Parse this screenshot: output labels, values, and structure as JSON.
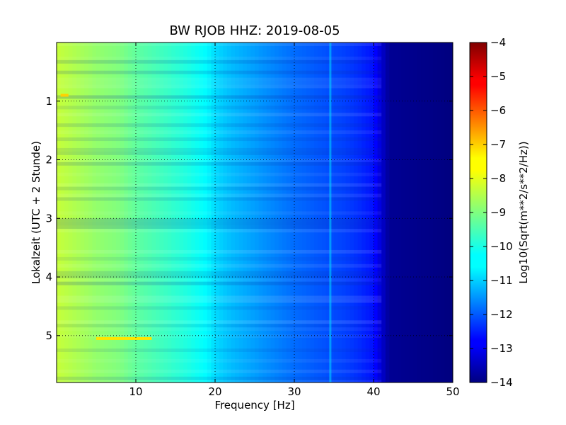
{
  "chart_data": {
    "type": "heatmap",
    "title": "BW RJOB HHZ: 2019-08-05",
    "xlabel": "Frequency [Hz]",
    "ylabel": "Lokalzeit (UTC + 2 Stunde)",
    "xlim": [
      0,
      50
    ],
    "ylim": [
      0,
      5.8
    ],
    "y_inverted": true,
    "x_ticks": [
      10,
      20,
      30,
      40,
      50
    ],
    "x_tick_labels": [
      "10",
      "20",
      "30",
      "40",
      "50"
    ],
    "y_ticks": [
      1,
      2,
      3,
      4,
      5
    ],
    "y_tick_labels": [
      "1",
      "2",
      "3",
      "4",
      "5"
    ],
    "grid": true,
    "colorbar": {
      "label": "Log10(Sqrt(m**2/s**2/Hz))",
      "range": [
        -14,
        -4
      ],
      "ticks": [
        -4,
        -5,
        -6,
        -7,
        -8,
        -9,
        -10,
        -11,
        -12,
        -13,
        -14
      ],
      "tick_labels": [
        "−4",
        "−5",
        "−6",
        "−7",
        "−8",
        "−9",
        "−10",
        "−11",
        "−12",
        "−13",
        "−14"
      ],
      "colormap": "jet"
    },
    "profile": {
      "frequency_hz": [
        0,
        2,
        5,
        8,
        10,
        13,
        16,
        19,
        20,
        22,
        25,
        28,
        30,
        33,
        36,
        38,
        40,
        41,
        42,
        50
      ],
      "log10_amplitude": [
        -8.3,
        -8.5,
        -8.8,
        -9.0,
        -9.3,
        -9.6,
        -9.9,
        -10.3,
        -10.6,
        -10.9,
        -11.2,
        -11.5,
        -11.7,
        -11.9,
        -12.1,
        -12.3,
        -12.6,
        -13.2,
        -13.8,
        -14.0
      ]
    },
    "features": [
      {
        "label": "34.5 Hz line",
        "frequency_hz": 34.5,
        "log10_amplitude": -10.6
      },
      {
        "label": "strong band",
        "time": 5.05,
        "freq_range": [
          5,
          12
        ],
        "log10_amplitude": -7.5
      },
      {
        "label": "strong band",
        "time": 0.9,
        "freq_range": [
          0.5,
          1.5
        ],
        "log10_amplitude": -7.3
      }
    ]
  }
}
